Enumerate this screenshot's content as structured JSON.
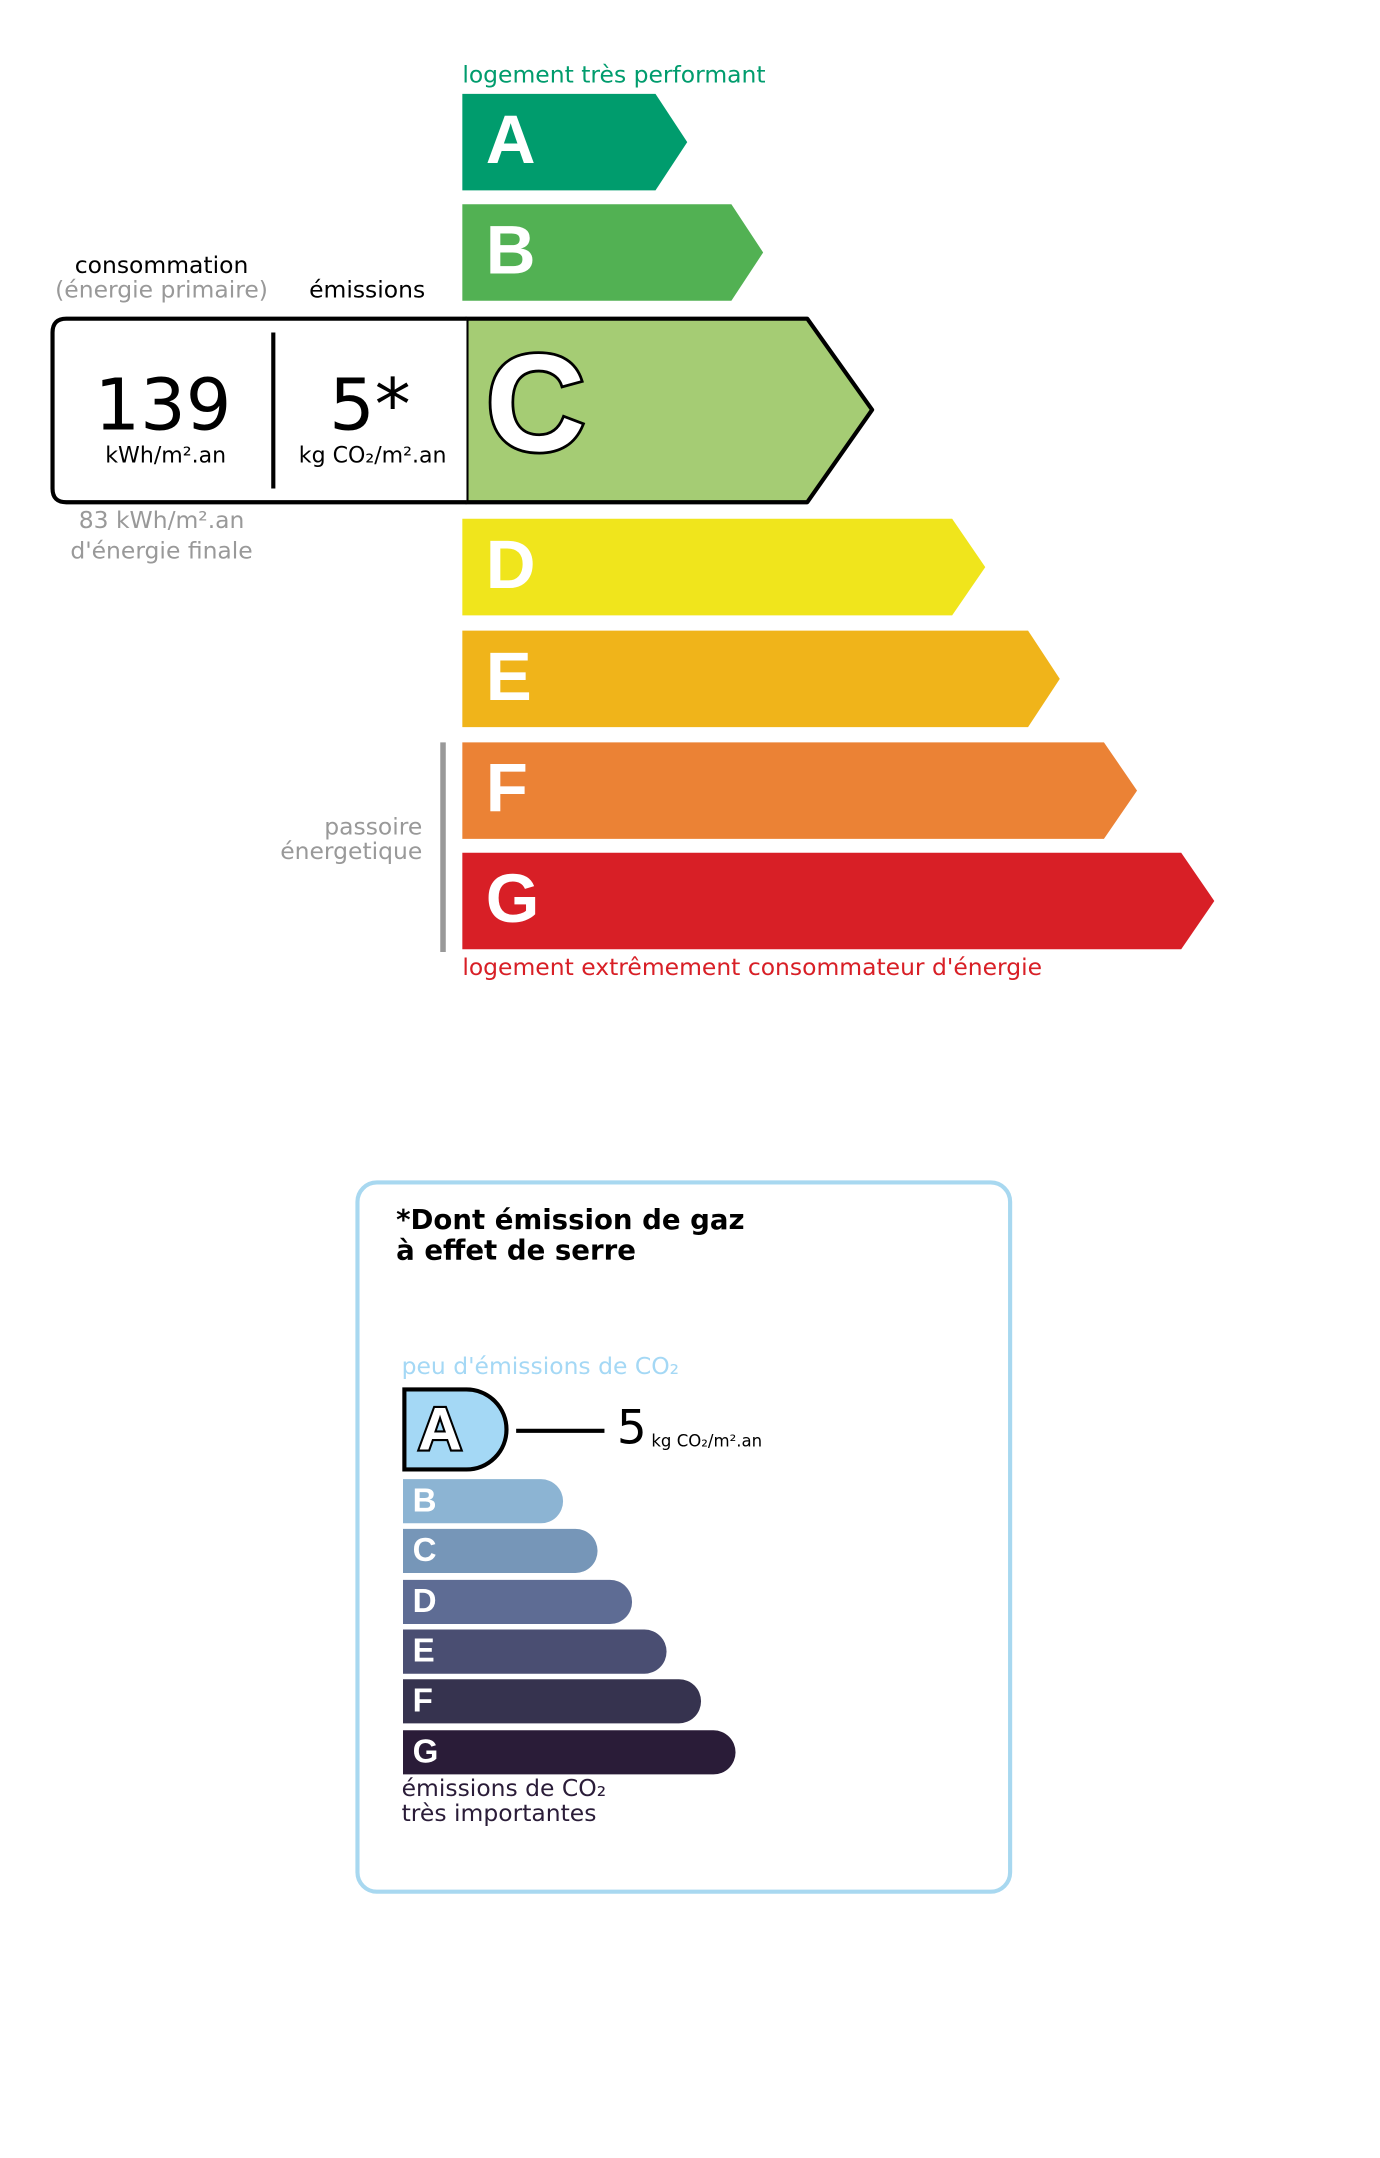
{
  "energy_label": {
    "top_caption": "logement très performant",
    "bottom_caption": "logement extrêmement consommateur d'énergie",
    "classes": [
      "A",
      "B",
      "C",
      "D",
      "E",
      "F",
      "G"
    ],
    "consumption": {
      "label": "consommation",
      "sublabel": "(énergie primaire)",
      "value": "139",
      "unit": "kWh/m².an"
    },
    "emissions": {
      "label": "émissions",
      "value": "5*",
      "unit": "kg CO₂/m².an"
    },
    "final_energy": [
      "83 kWh/m².an",
      "d'énergie finale"
    ],
    "passoire": [
      "passoire",
      "énergetique"
    ]
  },
  "ghg_label": {
    "title": [
      "*Dont émission de gaz",
      "à effet de serre"
    ],
    "top_caption": "peu d'émissions de CO₂",
    "classes": [
      "A",
      "B",
      "C",
      "D",
      "E",
      "F",
      "G"
    ],
    "value": "5",
    "unit": "kg CO₂/m².an",
    "bottom_caption": [
      "émissions de CO₂",
      "très importantes"
    ]
  }
}
